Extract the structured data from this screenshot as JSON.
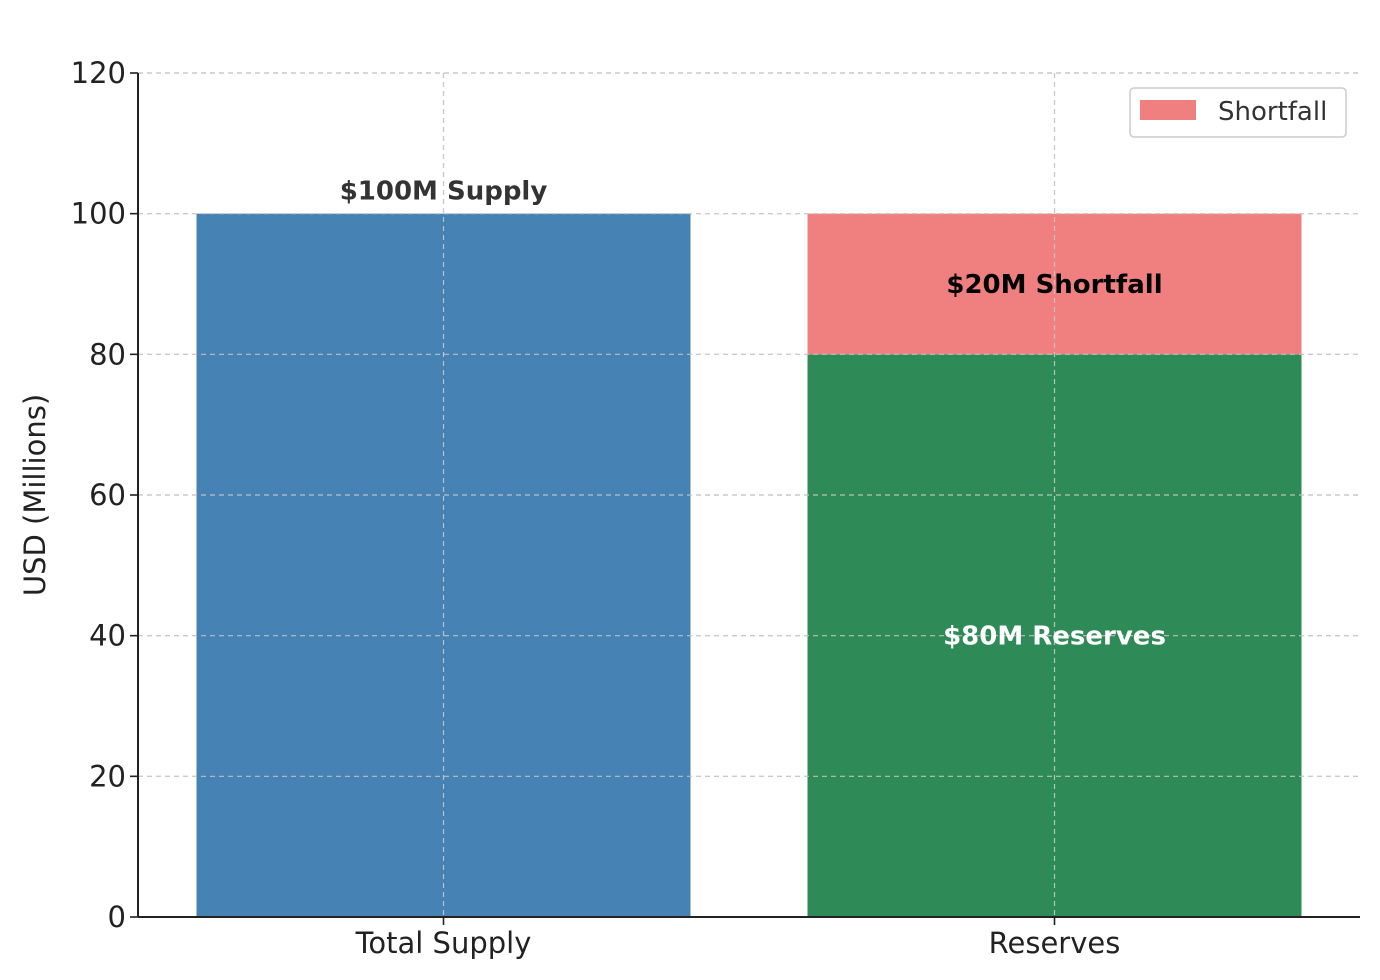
{
  "chart_data": {
    "type": "bar",
    "stacked": true,
    "title": "",
    "xlabel": "",
    "ylabel": "USD (Millions)",
    "ylim": [
      0,
      120
    ],
    "yticks": [
      0,
      20,
      40,
      60,
      80,
      100,
      120
    ],
    "categories": [
      "Total Supply",
      "Reserves"
    ],
    "grid": true,
    "legend": {
      "placement": "top-right",
      "entries": [
        {
          "label": "Shortfall",
          "color": "#f08080"
        }
      ]
    },
    "bars": [
      {
        "category": "Total Supply",
        "base": 0,
        "value": 100,
        "color": "#4682b4",
        "label": "$100M Supply",
        "label_color": "#333333",
        "label_pos": "above"
      },
      {
        "category": "Reserves",
        "base": 0,
        "value": 80,
        "color": "#2e8b57",
        "label": "$80M Reserves",
        "label_color": "#ffffff",
        "label_pos": "center"
      },
      {
        "category": "Reserves",
        "base": 80,
        "value": 20,
        "color": "#f08080",
        "label": "$20M Shortfall",
        "label_color": "#000000",
        "label_pos": "center"
      }
    ]
  }
}
